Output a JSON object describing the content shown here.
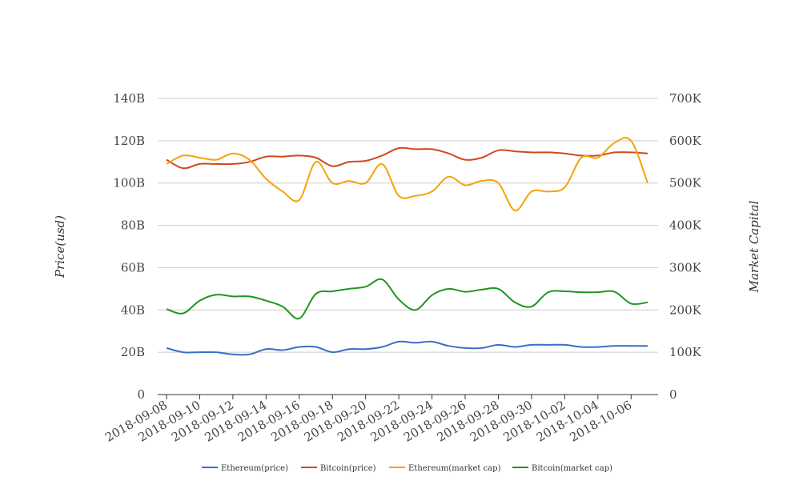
{
  "chart_data": {
    "type": "line",
    "title": "",
    "xlabel": "",
    "ylabel_left": "Price(usd)",
    "ylabel_right": "Market Capital",
    "grid": true,
    "legend_position": "bottom",
    "x": [
      "2018-09-08",
      "2018-09-09",
      "2018-09-10",
      "2018-09-11",
      "2018-09-12",
      "2018-09-13",
      "2018-09-14",
      "2018-09-15",
      "2018-09-16",
      "2018-09-17",
      "2018-09-18",
      "2018-09-19",
      "2018-09-20",
      "2018-09-21",
      "2018-09-22",
      "2018-09-23",
      "2018-09-24",
      "2018-09-25",
      "2018-09-26",
      "2018-09-27",
      "2018-09-28",
      "2018-09-29",
      "2018-09-30",
      "2018-10-01",
      "2018-10-02",
      "2018-10-03",
      "2018-10-04",
      "2018-10-05",
      "2018-10-06",
      "2018-10-07"
    ],
    "x_tick_labels": [
      "2018-09-08",
      "2018-09-10",
      "2018-09-12",
      "2018-09-14",
      "2018-09-16",
      "2018-09-18",
      "2018-09-20",
      "2018-09-22",
      "2018-09-24",
      "2018-09-26",
      "2018-09-28",
      "2018-09-30",
      "2018-10-02",
      "2018-10-04",
      "2018-10-06"
    ],
    "y_left": {
      "ylim": [
        0,
        140
      ],
      "ticks": [
        "0",
        "20B",
        "40B",
        "60B",
        "80B",
        "100B",
        "120B",
        "140B"
      ]
    },
    "y_right": {
      "ylim": [
        0,
        700
      ],
      "ticks": [
        "0",
        "100K",
        "200K",
        "300K",
        "400K",
        "500K",
        "600K",
        "700K"
      ]
    },
    "series": [
      {
        "name": "Ethereum(price)",
        "color": "#3b6fc4",
        "axis": "left",
        "values": [
          22,
          20,
          20,
          20,
          19,
          19,
          21.5,
          21,
          22.5,
          22.5,
          20,
          21.5,
          21.5,
          22.5,
          25,
          24.5,
          25,
          23,
          22,
          22,
          23.5,
          22.5,
          23.5,
          23.5,
          23.5,
          22.5,
          22.5,
          23,
          23,
          23
        ]
      },
      {
        "name": "Bitcoin(price)",
        "color": "#d0491b",
        "axis": "left",
        "values": [
          111,
          107,
          109,
          109,
          109,
          110,
          112.5,
          112.5,
          113,
          112,
          108,
          110,
          110.5,
          113,
          116.5,
          116,
          116,
          114,
          111,
          112,
          115.5,
          115,
          114.5,
          114.5,
          114,
          113,
          113,
          114.5,
          114.5,
          114
        ]
      },
      {
        "name": "Ethereum(market cap)",
        "color": "#f5a30a",
        "axis": "right",
        "values": [
          545,
          565,
          560,
          555,
          570,
          555,
          510,
          480,
          460,
          550,
          500,
          505,
          500,
          545,
          470,
          470,
          480,
          515,
          495,
          505,
          500,
          435,
          480,
          480,
          490,
          560,
          560,
          595,
          600,
          500
        ]
      },
      {
        "name": "Bitcoin(market cap)",
        "color": "#1f961f",
        "axis": "right",
        "values": [
          202,
          192,
          222,
          236,
          232,
          232,
          222,
          208,
          180,
          238,
          244,
          250,
          255,
          272,
          225,
          200,
          235,
          250,
          243,
          248,
          250,
          218,
          208,
          242,
          244,
          242,
          242,
          243,
          215,
          218
        ]
      }
    ]
  }
}
